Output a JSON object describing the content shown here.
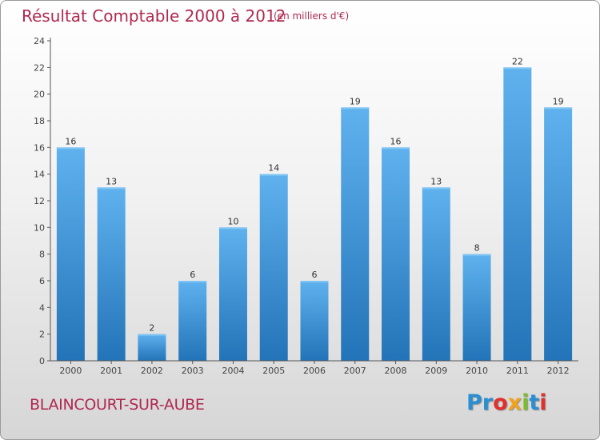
{
  "chart_data": {
    "type": "bar",
    "title": "Résultat Comptable 2000 à 2012",
    "subtitle": "(en milliers d'€)",
    "categories": [
      "2000",
      "2001",
      "2002",
      "2003",
      "2004",
      "2005",
      "2006",
      "2007",
      "2008",
      "2009",
      "2010",
      "2011",
      "2012"
    ],
    "values": [
      16,
      13,
      2,
      6,
      10,
      14,
      6,
      19,
      16,
      13,
      8,
      22,
      19
    ],
    "ylim": [
      0,
      24
    ],
    "yticks": [
      0,
      2,
      4,
      6,
      8,
      10,
      12,
      14,
      16,
      18,
      20,
      22,
      24
    ],
    "grid": false,
    "xlabel": "",
    "ylabel": ""
  },
  "commune": "BLAINCOURT-SUR-AUBE",
  "logo": {
    "parts": [
      "Pr",
      "o",
      "x",
      "i",
      "t",
      "i"
    ]
  },
  "colors": {
    "bar_light": "#5eb0ec",
    "bar_dark": "#2474ba",
    "title": "#b0284f",
    "axis": "#555555"
  }
}
